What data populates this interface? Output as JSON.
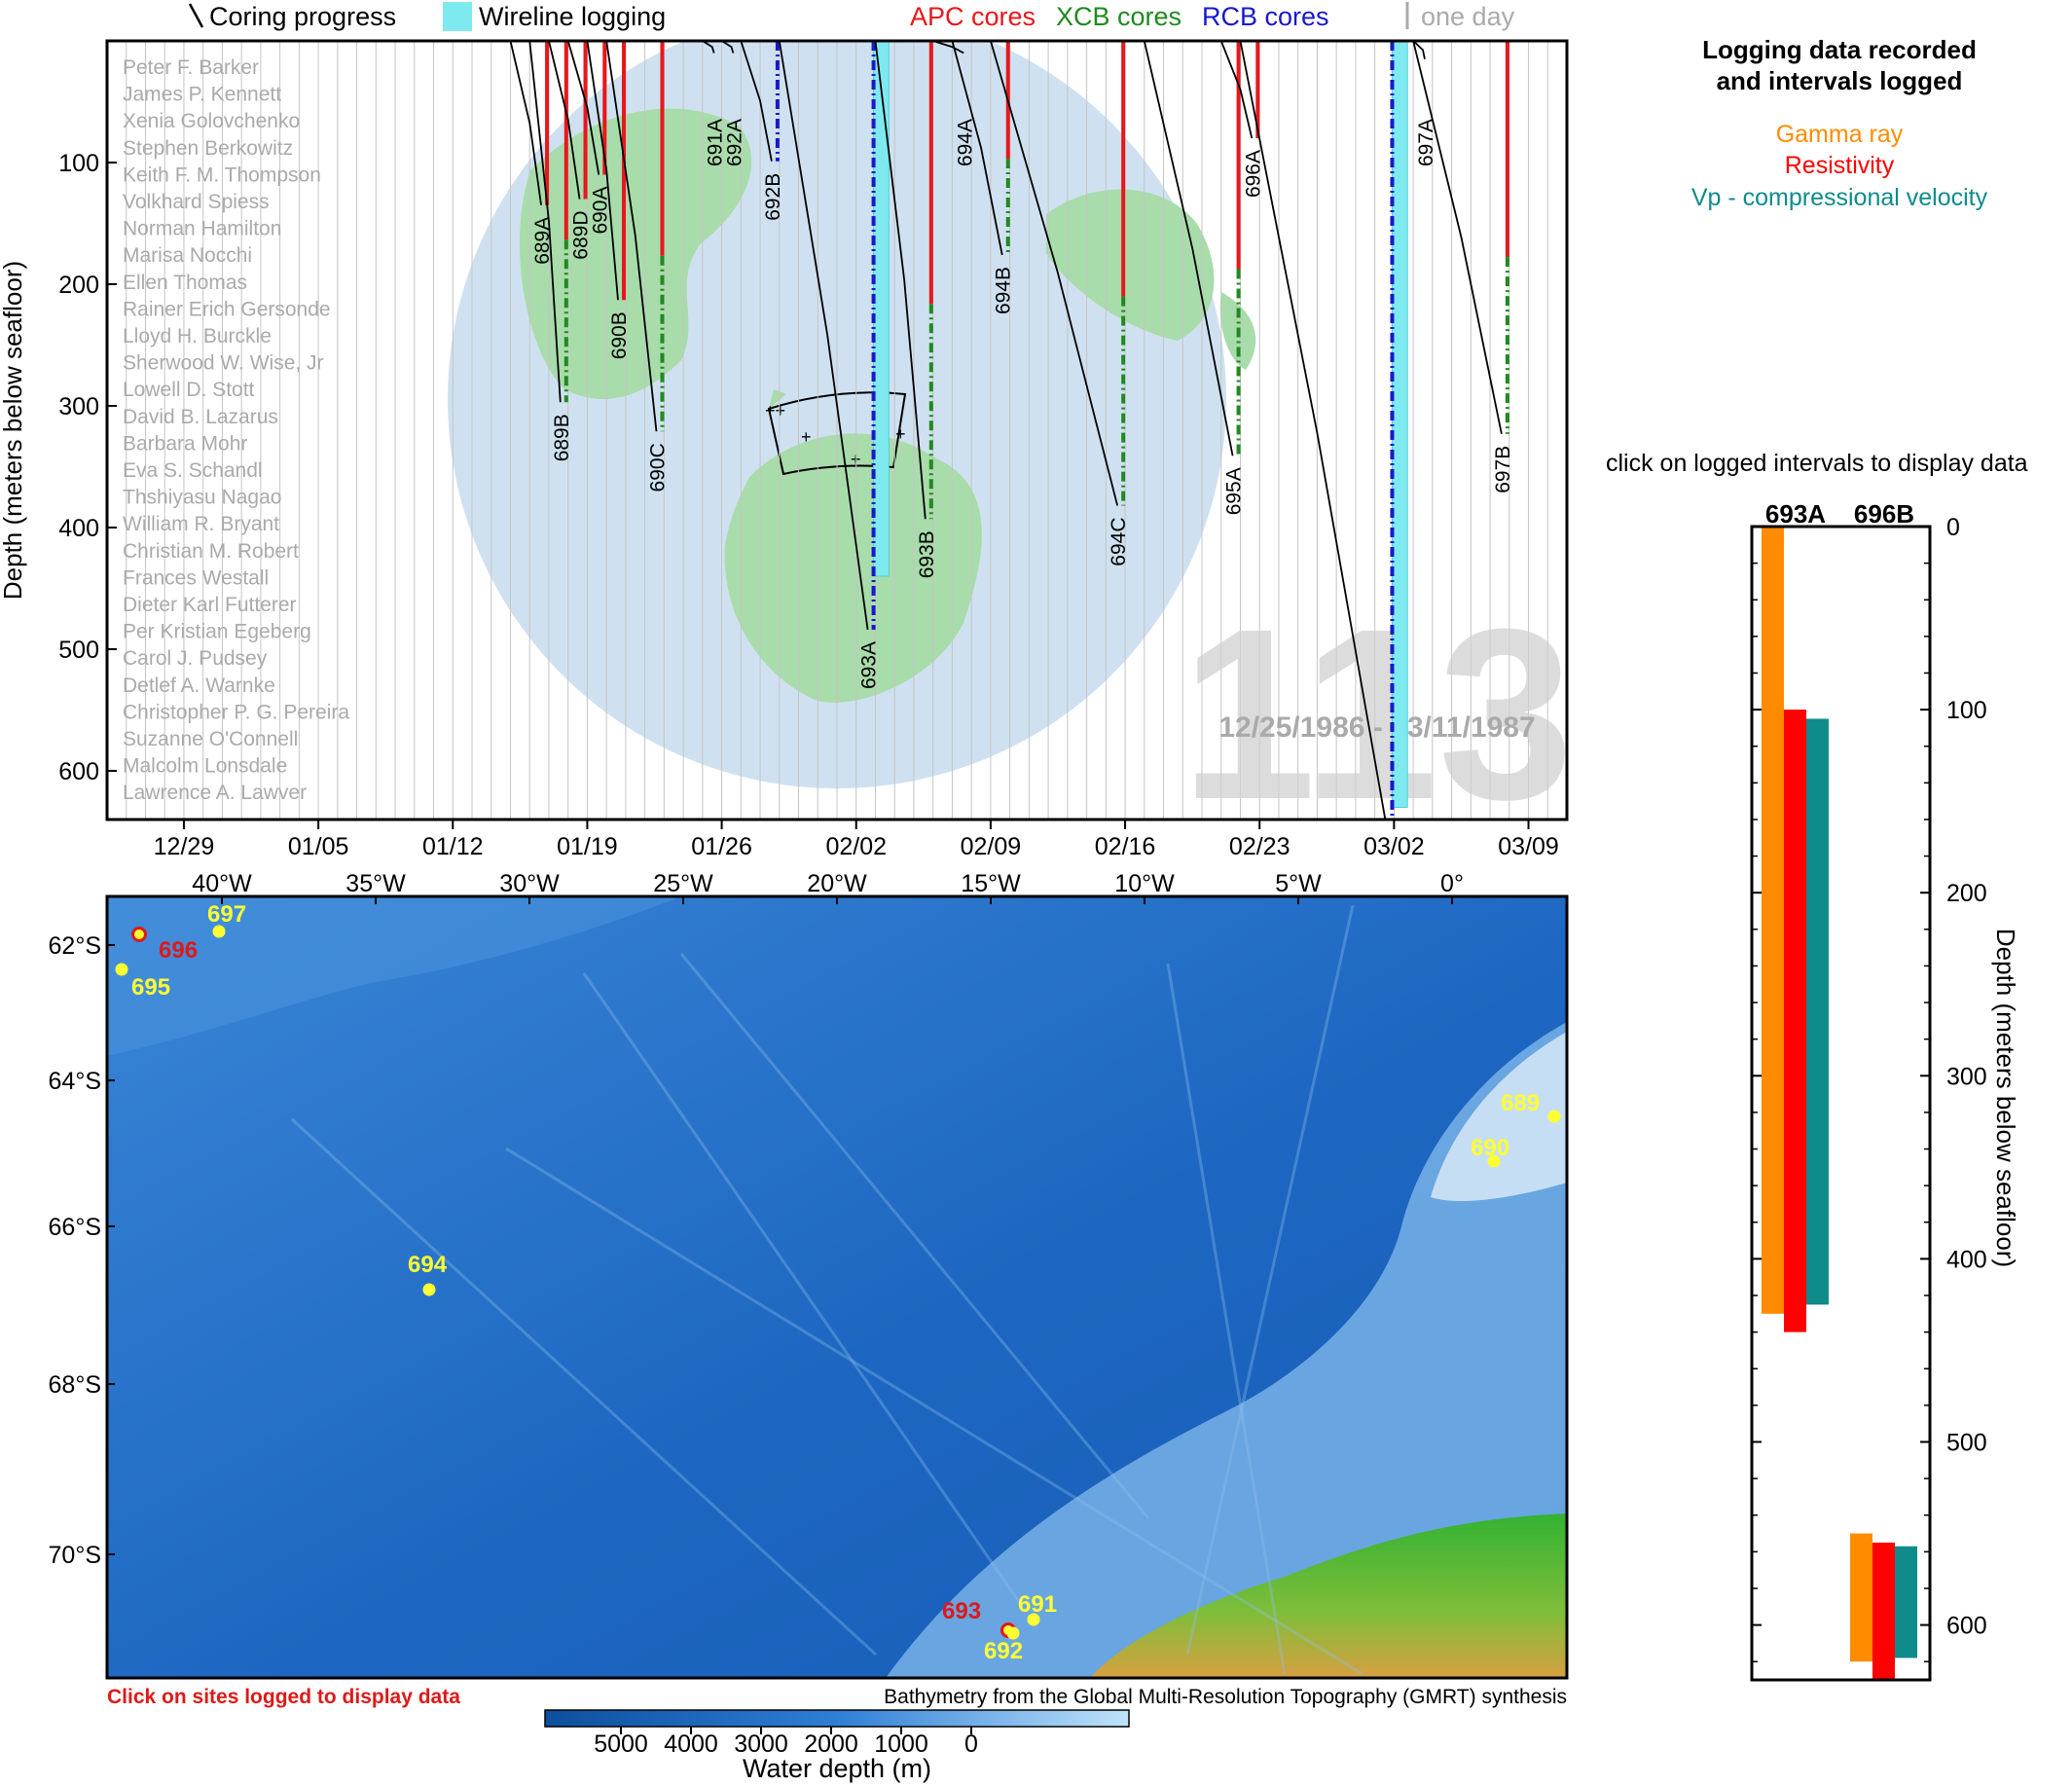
{
  "legend_top": {
    "coring": "Coring progress",
    "wireline": "Wireline logging",
    "apc": "APC cores",
    "xcb": "XCB cores",
    "rcb": "RCB cores",
    "one_day": "one day"
  },
  "colors": {
    "apc": "#e8171c",
    "xcb": "#1f8a1f",
    "rcb": "#1818cc",
    "wireline": "#7fe9f0",
    "gamma": "#ff8c00",
    "resistivity": "#ff0000",
    "vp": "#0f8b8b",
    "labels_site": "#ffff33",
    "logged_site": "#e01818",
    "land": "#a8dcaa",
    "ocean": "#cfe1f0"
  },
  "people": [
    "Peter F. Barker",
    "James P. Kennett",
    "Xenia Golovchenko",
    "Stephen Berkowitz",
    "Keith F. M. Thompson",
    "Volkhard Spiess",
    "Norman Hamilton",
    "Marisa Nocchi",
    "Ellen Thomas",
    "Rainer Erich Gersonde",
    "Lloyd H. Burckle",
    "Sherwood W. Wise, Jr",
    "Lowell D. Stott",
    "David B. Lazarus",
    "Barbara Mohr",
    "Eva S. Schandl",
    "Thshiyasu Nagao",
    "William R. Bryant",
    "Christian M. Robert",
    "Frances Westall",
    "Dieter Karl Futterer",
    "Per Kristian Egeberg",
    "Carol J. Pudsey",
    "Detlef A. Warnke",
    "Christopher P. G. Pereira",
    "Suzanne O'Connell",
    "Malcolm Lonsdale",
    "Lawrence A. Lawver"
  ],
  "leg_number": "113",
  "date_range": "12/25/1986 - 03/11/1987",
  "right_panel": {
    "title_line1": "Logging data recorded",
    "title_line2": "and intervals logged",
    "gamma": "Gamma ray",
    "resistivity": "Resistivity",
    "vp": "Vp - compressional velocity",
    "click_note": "click on logged intervals to display data"
  },
  "map": {
    "click_note": "Click on sites logged to display data",
    "credit": "Bathymetry from the Global Multi-Resolution Topography (GMRT) synthesis",
    "colorbar_label": "Water depth (m)",
    "colorbar_ticks": [
      "5000",
      "4000",
      "3000",
      "2000",
      "1000",
      "0"
    ],
    "lon_labels": [
      "40°W",
      "35°W",
      "30°W",
      "25°W",
      "20°W",
      "15°W",
      "10°W",
      "5°W",
      "0°"
    ],
    "lat_labels": [
      "62°S",
      "64°S",
      "66°S",
      "68°S",
      "70°S"
    ],
    "sites": [
      {
        "id": "697",
        "logged": false,
        "lon": -40.3,
        "lat": -61.8
      },
      {
        "id": "696",
        "logged": true,
        "lon": -42.9,
        "lat": -61.85
      },
      {
        "id": "695",
        "logged": false,
        "lon": -43.4,
        "lat": -62.4
      },
      {
        "id": "689",
        "logged": false,
        "lon": 3.1,
        "lat": -64.5
      },
      {
        "id": "690",
        "logged": false,
        "lon": 1.2,
        "lat": -65.15
      },
      {
        "id": "694",
        "logged": false,
        "lon": -33.4,
        "lat": -66.85
      },
      {
        "id": "693",
        "logged": true,
        "lon": -14.4,
        "lat": -70.85
      },
      {
        "id": "691",
        "logged": false,
        "lon": -13.6,
        "lat": -70.75
      },
      {
        "id": "692",
        "logged": false,
        "lon": -14.2,
        "lat": -70.85
      }
    ]
  },
  "chart_data": [
    {
      "type": "line",
      "title": "",
      "xlabel": "",
      "ylabel": "Depth (meters below seafloor)",
      "x_ticks": [
        "12/29",
        "01/05",
        "01/12",
        "01/19",
        "01/26",
        "02/02",
        "02/09",
        "02/16",
        "02/23",
        "03/02",
        "03/09"
      ],
      "x_range": [
        "12/25/1986",
        "03/11/1987"
      ],
      "y_ticks": [
        "100",
        "200",
        "300",
        "400",
        "500",
        "600"
      ],
      "ylim": [
        0,
        640
      ],
      "y_inverted": true,
      "grid": "vertical line per day",
      "holes": [
        {
          "name": "689A",
          "start": "01/15",
          "end": "01/16",
          "depth_max": 135
        },
        {
          "name": "689B",
          "start": "01/16",
          "end": "01/17",
          "depth_max": 297
        },
        {
          "name": "689D",
          "start": "01/17",
          "end": "01/18",
          "depth_max": 130
        },
        {
          "name": "690A",
          "start": "01/18",
          "end": "01/19",
          "depth_max": 110
        },
        {
          "name": "690B",
          "start": "01/19",
          "end": "01/20",
          "depth_max": 213
        },
        {
          "name": "690C",
          "start": "01/20",
          "end": "01/22",
          "depth_max": 321
        },
        {
          "name": "691A",
          "start": "01/25",
          "end": "01/25",
          "depth_max": 10
        },
        {
          "name": "692A",
          "start": "01/26",
          "end": "01/26",
          "depth_max": 10
        },
        {
          "name": "692B",
          "start": "01/27",
          "end": "01/28",
          "depth_max": 99
        },
        {
          "name": "693A",
          "start": "01/29",
          "end": "02/02",
          "depth_max": 484
        },
        {
          "name": "693B",
          "start": "02/03",
          "end": "02/05",
          "depth_max": 393
        },
        {
          "name": "694A",
          "start": "02/06",
          "end": "02/07",
          "depth_max": 10
        },
        {
          "name": "694B",
          "start": "02/07",
          "end": "02/09",
          "depth_max": 176
        },
        {
          "name": "694C",
          "start": "02/09",
          "end": "02/15",
          "depth_max": 382
        },
        {
          "name": "695A",
          "start": "02/17",
          "end": "02/21",
          "depth_max": 341
        },
        {
          "name": "696A",
          "start": "02/21",
          "end": "02/22",
          "depth_max": 80
        },
        {
          "name": "696B",
          "start": "02/22",
          "end": "03/01",
          "depth_max": 645
        },
        {
          "name": "697A",
          "start": "03/03",
          "end": "03/03",
          "depth_max": 15
        },
        {
          "name": "697B",
          "start": "03/03",
          "end": "03/07",
          "depth_max": 323
        }
      ],
      "wireline_logging": [
        {
          "hole": "693A",
          "depth_top": 0,
          "depth_bottom": 440
        },
        {
          "hole": "696B",
          "depth_top": 0,
          "depth_bottom": 630
        }
      ]
    },
    {
      "type": "bar",
      "title": "Logging data recorded and intervals logged",
      "categories": [
        "693A",
        "696B"
      ],
      "ylabel": "Depth (meters below seafloor)",
      "ylim": [
        0,
        630
      ],
      "y_ticks": [
        "0",
        "100",
        "200",
        "300",
        "400",
        "500",
        "600"
      ],
      "y_inverted": true,
      "series": [
        {
          "name": "Gamma ray",
          "intervals": {
            "693A": [
              0,
              430
            ],
            "696B": [
              550,
              620
            ]
          }
        },
        {
          "name": "Resistivity",
          "intervals": {
            "693A": [
              100,
              440
            ],
            "696B": [
              555,
              630
            ]
          }
        },
        {
          "name": "Vp - compressional velocity",
          "intervals": {
            "693A": [
              105,
              425
            ],
            "696B": [
              557,
              618
            ]
          }
        }
      ]
    }
  ]
}
